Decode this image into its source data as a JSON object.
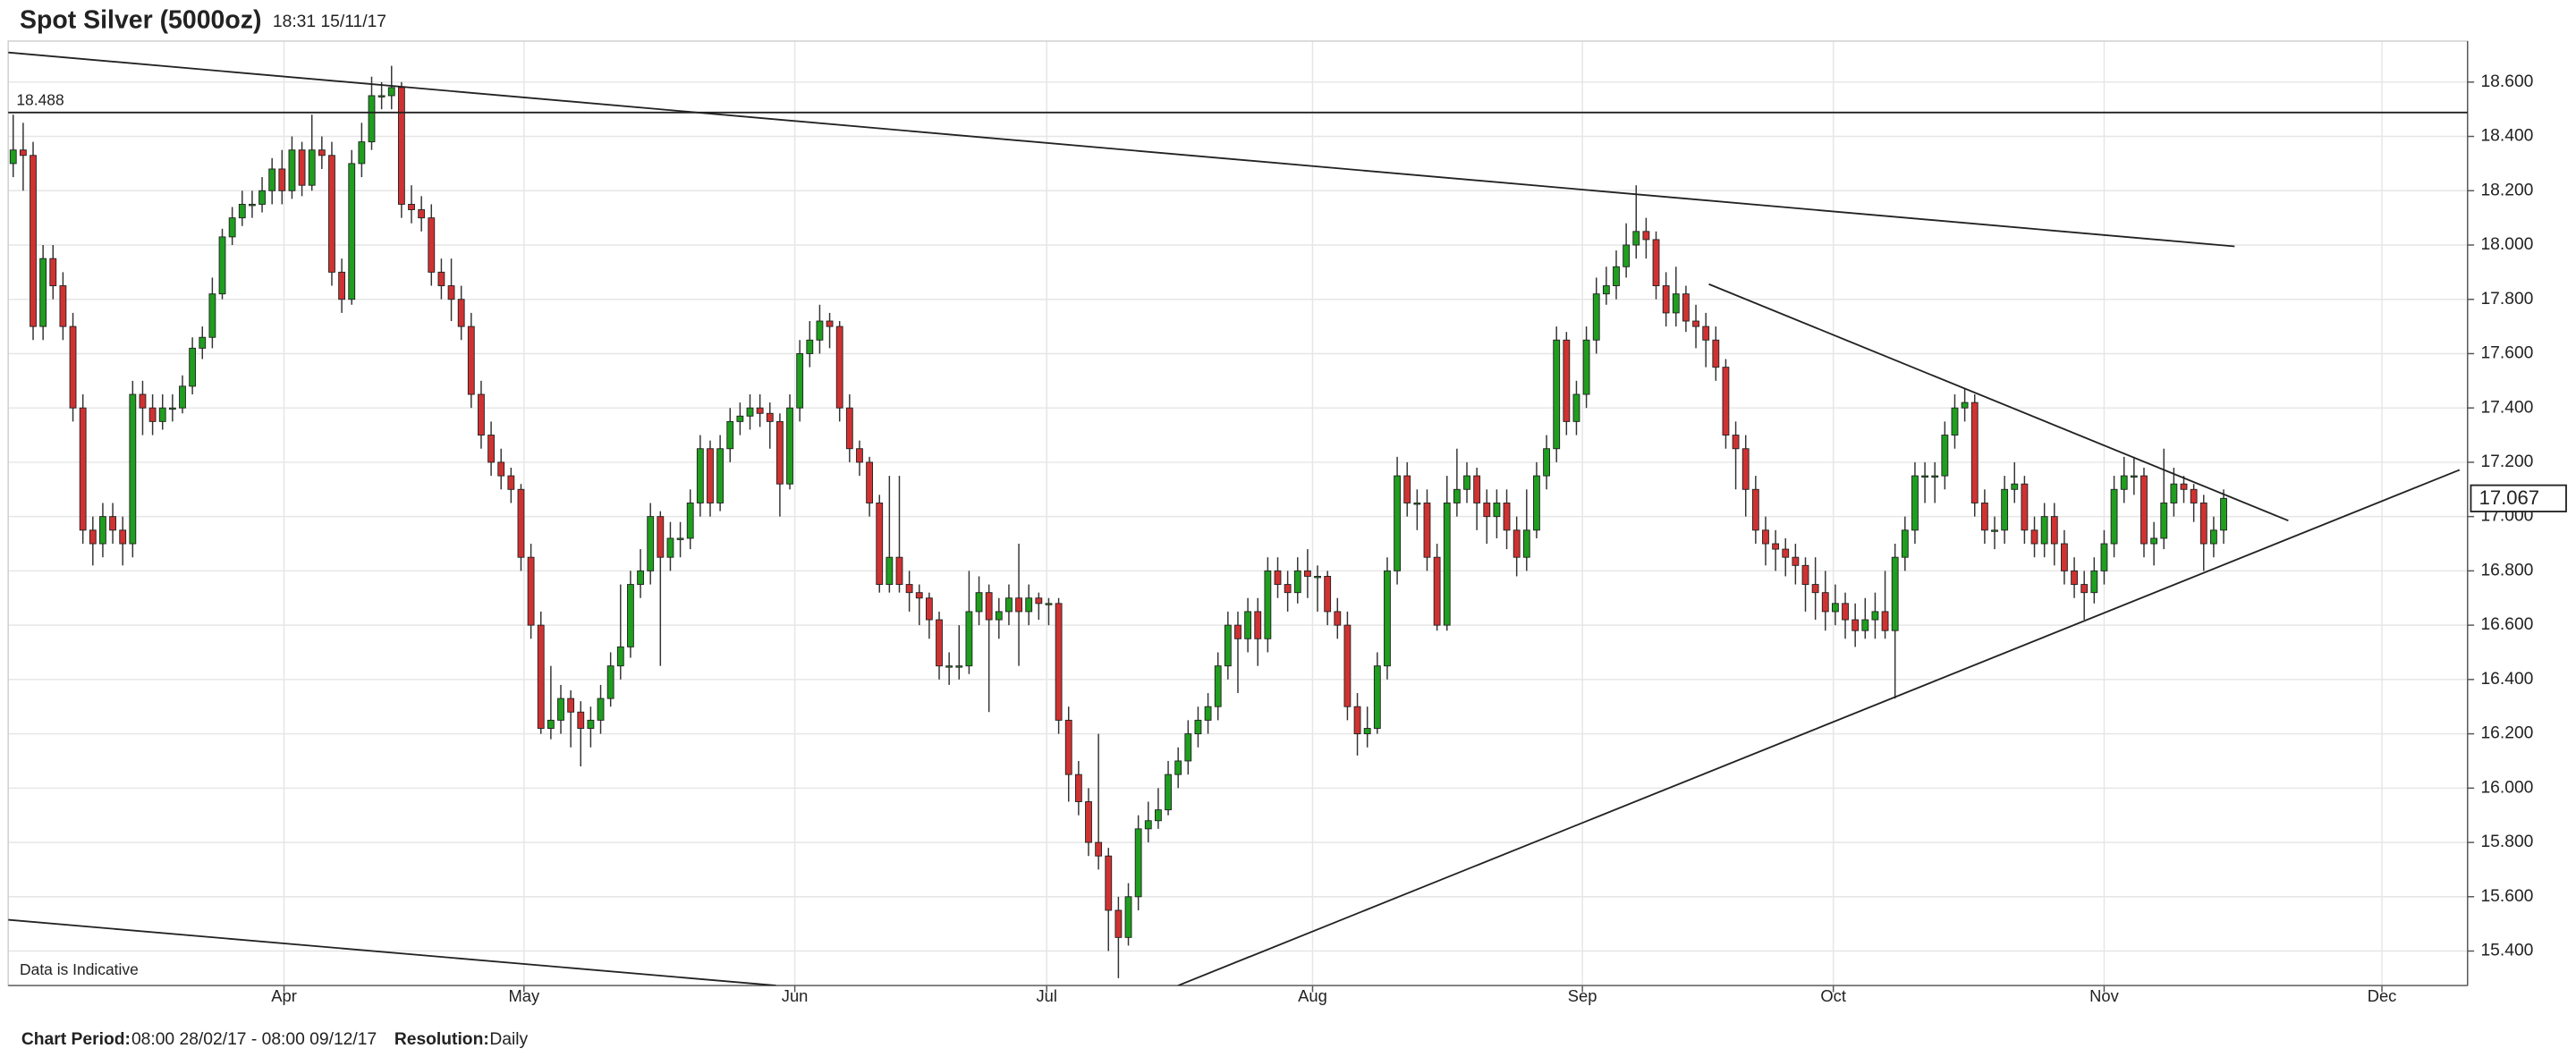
{
  "chart_data": {
    "type": "candlestick",
    "title": "Spot Silver (5000oz)",
    "timestamp": "18:31 15/11/17",
    "note": "Data is Indicative",
    "footer": {
      "period_label": "Chart Period:",
      "period": "08:00 28/02/17 - 08:00 09/12/17",
      "resolution_label": "Resolution:",
      "resolution": "Daily"
    },
    "up_color": "#1f9e1f",
    "down_color": "#d03232",
    "grid": true,
    "xlim": [
      -0.5,
      246.5
    ],
    "xticks": [
      {
        "value": 27.2,
        "label": "Apr"
      },
      {
        "value": 51.3,
        "label": "May"
      },
      {
        "value": 78.5,
        "label": "Jun"
      },
      {
        "value": 103.8,
        "label": "Jul"
      },
      {
        "value": 130.5,
        "label": "Aug"
      },
      {
        "value": 157.6,
        "label": "Sep"
      },
      {
        "value": 182.8,
        "label": "Oct"
      },
      {
        "value": 210,
        "label": "Nov"
      },
      {
        "value": 237.9,
        "label": "Dec"
      }
    ],
    "ylim": [
      15.273,
      18.751
    ],
    "yticks": [
      {
        "value": 15.4,
        "label": "15.400"
      },
      {
        "value": 15.6,
        "label": "15.600"
      },
      {
        "value": 15.8,
        "label": "15.800"
      },
      {
        "value": 16.0,
        "label": "16.000"
      },
      {
        "value": 16.2,
        "label": "16.200"
      },
      {
        "value": 16.4,
        "label": "16.400"
      },
      {
        "value": 16.6,
        "label": "16.600"
      },
      {
        "value": 16.8,
        "label": "16.800"
      },
      {
        "value": 17.0,
        "label": "17.000"
      },
      {
        "value": 17.2,
        "label": "17.200"
      },
      {
        "value": 17.4,
        "label": "17.400"
      },
      {
        "value": 17.6,
        "label": "17.600"
      },
      {
        "value": 17.8,
        "label": "17.800"
      },
      {
        "value": 18.0,
        "label": "18.000"
      },
      {
        "value": 18.2,
        "label": "18.200"
      },
      {
        "value": 18.4,
        "label": "18.400"
      },
      {
        "value": 18.6,
        "label": "18.600"
      }
    ],
    "hline": 18.488,
    "trendlines": [
      [
        [
          -0.5,
          18.709
        ],
        [
          223.1,
          17.995
        ]
      ],
      [
        [
          170.3,
          17.856
        ],
        [
          228.5,
          16.985
        ]
      ],
      [
        [
          117.0,
          15.273
        ],
        [
          245.7,
          17.172
        ]
      ],
      [
        [
          -0.5,
          15.515
        ],
        [
          76.6,
          15.273
        ]
      ]
    ],
    "open": [
      18.3,
      18.35,
      18.33,
      17.7,
      17.95,
      17.85,
      17.7,
      17.4,
      16.95,
      16.9,
      17.0,
      16.95,
      16.9,
      17.45,
      17.4,
      17.35,
      17.4,
      17.4,
      17.48,
      17.62,
      17.66,
      17.82,
      18.03,
      18.1,
      18.15,
      18.15,
      18.2,
      18.28,
      18.2,
      18.35,
      18.22,
      18.35,
      18.33,
      17.9,
      17.8,
      18.3,
      18.38,
      18.55,
      18.55,
      18.58,
      18.15,
      18.13,
      18.1,
      17.9,
      17.85,
      17.8,
      17.7,
      17.45,
      17.3,
      17.2,
      17.15,
      17.1,
      16.85,
      16.6,
      16.22,
      16.25,
      16.33,
      16.28,
      16.22,
      16.25,
      16.33,
      16.45,
      16.52,
      16.75,
      16.8,
      17.0,
      16.85,
      16.92,
      16.92,
      17.05,
      17.25,
      17.05,
      17.25,
      17.35,
      17.37,
      17.4,
      17.38,
      17.35,
      17.12,
      17.4,
      17.6,
      17.65,
      17.72,
      17.7,
      17.4,
      17.25,
      17.2,
      17.05,
      16.75,
      16.85,
      16.75,
      16.72,
      16.7,
      16.62,
      16.45,
      16.45,
      16.45,
      16.65,
      16.72,
      16.62,
      16.65,
      16.7,
      16.65,
      16.7,
      16.68,
      16.68,
      16.25,
      16.05,
      15.95,
      15.8,
      15.75,
      15.55,
      15.45,
      15.6,
      15.85,
      15.88,
      15.92,
      16.05,
      16.1,
      16.2,
      16.25,
      16.3,
      16.45,
      16.6,
      16.55,
      16.65,
      16.55,
      16.8,
      16.75,
      16.72,
      16.8,
      16.78,
      16.78,
      16.65,
      16.6,
      16.3,
      16.2,
      16.22,
      16.45,
      16.8,
      17.15,
      17.05,
      17.05,
      16.85,
      16.6,
      17.05,
      17.1,
      17.15,
      17.05,
      17.0,
      17.05,
      16.95,
      16.85,
      16.95,
      17.15,
      17.25,
      17.65,
      17.35,
      17.45,
      17.65,
      17.82,
      17.85,
      17.92,
      18.0,
      18.05,
      18.02,
      17.85,
      17.75,
      17.82,
      17.72,
      17.7,
      17.65,
      17.55,
      17.3,
      17.25,
      17.1,
      16.95,
      16.9,
      16.88,
      16.85,
      16.82,
      16.75,
      16.72,
      16.65,
      16.68,
      16.62,
      16.58,
      16.62,
      16.65,
      16.58,
      16.85,
      16.95,
      17.15,
      17.15,
      17.15,
      17.3,
      17.4,
      17.42,
      17.05,
      16.95,
      16.95,
      17.1,
      17.12,
      16.95,
      16.9,
      17.0,
      16.9,
      16.8,
      16.75,
      16.72,
      16.8,
      16.9,
      17.1,
      17.15,
      17.15,
      16.9,
      16.92,
      17.05,
      17.12,
      17.1,
      17.05,
      16.9,
      16.95
    ],
    "high": [
      18.48,
      18.45,
      18.38,
      18.0,
      18.0,
      17.9,
      17.75,
      17.45,
      17.0,
      17.05,
      17.05,
      17.0,
      17.5,
      17.5,
      17.45,
      17.45,
      17.45,
      17.52,
      17.66,
      17.7,
      17.88,
      18.06,
      18.14,
      18.2,
      18.2,
      18.25,
      18.32,
      18.35,
      18.4,
      18.38,
      18.48,
      18.4,
      18.38,
      17.95,
      18.35,
      18.45,
      18.62,
      18.6,
      18.66,
      18.6,
      18.22,
      18.18,
      18.15,
      17.95,
      17.95,
      17.85,
      17.75,
      17.5,
      17.35,
      17.25,
      17.18,
      17.12,
      16.9,
      16.65,
      16.45,
      16.38,
      16.36,
      16.32,
      16.3,
      16.38,
      16.5,
      16.75,
      16.8,
      16.88,
      17.05,
      17.02,
      16.98,
      16.98,
      17.1,
      17.3,
      17.28,
      17.3,
      17.4,
      17.42,
      17.45,
      17.45,
      17.42,
      17.38,
      17.45,
      17.65,
      17.72,
      17.78,
      17.75,
      17.72,
      17.45,
      17.28,
      17.22,
      17.08,
      17.15,
      17.15,
      16.8,
      16.75,
      16.72,
      16.65,
      16.5,
      16.6,
      16.8,
      16.78,
      16.75,
      16.7,
      16.75,
      16.9,
      16.75,
      16.72,
      16.7,
      16.7,
      16.3,
      16.1,
      16.0,
      16.2,
      15.78,
      15.6,
      15.65,
      15.9,
      15.95,
      16.0,
      16.1,
      16.15,
      16.25,
      16.3,
      16.35,
      16.5,
      16.65,
      16.65,
      16.7,
      16.7,
      16.85,
      16.85,
      16.8,
      16.85,
      16.88,
      16.82,
      16.8,
      16.7,
      16.65,
      16.35,
      16.3,
      16.5,
      16.85,
      17.22,
      17.2,
      17.1,
      17.1,
      16.9,
      17.15,
      17.25,
      17.2,
      17.18,
      17.1,
      17.1,
      17.1,
      17.0,
      17.1,
      17.2,
      17.3,
      17.7,
      17.68,
      17.5,
      17.7,
      17.88,
      17.92,
      17.98,
      18.08,
      18.22,
      18.1,
      18.05,
      17.9,
      17.92,
      17.85,
      17.78,
      17.75,
      17.7,
      17.58,
      17.35,
      17.3,
      17.15,
      17.0,
      16.95,
      16.92,
      16.9,
      16.85,
      16.85,
      16.8,
      16.75,
      16.72,
      16.68,
      16.7,
      16.72,
      16.8,
      16.9,
      17.0,
      17.2,
      17.2,
      17.2,
      17.35,
      17.45,
      17.47,
      17.45,
      17.1,
      17.0,
      17.15,
      17.2,
      17.15,
      17.0,
      17.05,
      17.05,
      16.95,
      16.85,
      16.8,
      16.85,
      16.95,
      17.15,
      17.22,
      17.22,
      17.18,
      16.98,
      17.25,
      17.18,
      17.15,
      17.12,
      17.08,
      17.0,
      17.1
    ],
    "low": [
      18.25,
      18.2,
      17.65,
      17.65,
      17.8,
      17.65,
      17.35,
      16.9,
      16.82,
      16.85,
      16.9,
      16.82,
      16.85,
      17.3,
      17.3,
      17.32,
      17.35,
      17.38,
      17.45,
      17.58,
      17.62,
      17.8,
      18.0,
      18.07,
      18.1,
      18.12,
      18.15,
      18.15,
      18.17,
      18.18,
      18.2,
      18.28,
      17.85,
      17.75,
      17.78,
      18.25,
      18.35,
      18.5,
      18.5,
      18.1,
      18.08,
      18.05,
      17.85,
      17.8,
      17.72,
      17.65,
      17.4,
      17.25,
      17.15,
      17.1,
      17.05,
      16.8,
      16.55,
      16.2,
      16.18,
      16.2,
      16.15,
      16.08,
      16.15,
      16.2,
      16.3,
      16.4,
      16.48,
      16.7,
      16.75,
      16.45,
      16.8,
      16.85,
      16.88,
      17.0,
      17.0,
      17.02,
      17.2,
      17.3,
      17.32,
      17.33,
      17.25,
      17.0,
      17.1,
      17.35,
      17.55,
      17.6,
      17.62,
      17.35,
      17.2,
      17.15,
      17.0,
      16.72,
      16.72,
      16.72,
      16.65,
      16.6,
      16.55,
      16.4,
      16.38,
      16.4,
      16.42,
      16.6,
      16.28,
      16.55,
      16.6,
      16.45,
      16.6,
      16.62,
      16.6,
      16.2,
      15.95,
      15.9,
      15.75,
      15.7,
      15.4,
      15.3,
      15.42,
      15.55,
      15.8,
      15.85,
      15.9,
      16.0,
      16.05,
      16.15,
      16.2,
      16.25,
      16.4,
      16.35,
      16.5,
      16.45,
      16.5,
      16.7,
      16.65,
      16.68,
      16.7,
      16.65,
      16.6,
      16.55,
      16.25,
      16.12,
      16.15,
      16.2,
      16.4,
      16.75,
      17.0,
      16.95,
      16.8,
      16.58,
      16.58,
      17.0,
      17.05,
      16.95,
      16.9,
      16.92,
      16.88,
      16.78,
      16.8,
      16.92,
      17.1,
      17.2,
      17.3,
      17.3,
      17.4,
      17.6,
      17.78,
      17.8,
      17.88,
      17.95,
      17.95,
      17.8,
      17.7,
      17.7,
      17.68,
      17.62,
      17.55,
      17.5,
      17.25,
      17.1,
      17.0,
      16.9,
      16.82,
      16.8,
      16.78,
      16.75,
      16.65,
      16.62,
      16.58,
      16.6,
      16.55,
      16.52,
      16.55,
      16.55,
      16.55,
      16.33,
      16.8,
      16.9,
      17.05,
      17.05,
      17.1,
      17.25,
      17.35,
      17.0,
      16.9,
      16.88,
      16.9,
      17.05,
      16.9,
      16.85,
      16.85,
      16.82,
      16.75,
      16.7,
      16.62,
      16.68,
      16.75,
      16.85,
      17.05,
      17.08,
      16.85,
      16.82,
      16.88,
      17.0,
      17.05,
      16.98,
      16.8,
      16.85,
      16.9
    ],
    "close": [
      18.35,
      18.33,
      17.7,
      17.95,
      17.85,
      17.7,
      17.4,
      16.95,
      16.9,
      17.0,
      16.95,
      16.9,
      17.45,
      17.4,
      17.35,
      17.4,
      17.4,
      17.48,
      17.62,
      17.66,
      17.82,
      18.03,
      18.1,
      18.15,
      18.15,
      18.2,
      18.28,
      18.2,
      18.35,
      18.22,
      18.35,
      18.33,
      17.9,
      17.8,
      18.3,
      18.38,
      18.55,
      18.55,
      18.58,
      18.15,
      18.13,
      18.1,
      17.9,
      17.85,
      17.8,
      17.7,
      17.45,
      17.3,
      17.2,
      17.15,
      17.1,
      16.85,
      16.6,
      16.22,
      16.25,
      16.33,
      16.28,
      16.22,
      16.25,
      16.33,
      16.45,
      16.52,
      16.75,
      16.8,
      17.0,
      16.85,
      16.92,
      16.92,
      17.05,
      17.25,
      17.05,
      17.25,
      17.35,
      17.37,
      17.4,
      17.38,
      17.35,
      17.12,
      17.4,
      17.6,
      17.65,
      17.72,
      17.7,
      17.4,
      17.25,
      17.2,
      17.05,
      16.75,
      16.85,
      16.75,
      16.72,
      16.7,
      16.62,
      16.45,
      16.45,
      16.45,
      16.65,
      16.72,
      16.62,
      16.65,
      16.7,
      16.65,
      16.7,
      16.68,
      16.68,
      16.25,
      16.05,
      15.95,
      15.8,
      15.75,
      15.55,
      15.45,
      15.6,
      15.85,
      15.88,
      15.92,
      16.05,
      16.1,
      16.2,
      16.25,
      16.3,
      16.45,
      16.6,
      16.55,
      16.65,
      16.55,
      16.8,
      16.75,
      16.72,
      16.8,
      16.78,
      16.78,
      16.65,
      16.6,
      16.3,
      16.2,
      16.22,
      16.45,
      16.8,
      17.15,
      17.05,
      17.05,
      16.85,
      16.6,
      17.05,
      17.1,
      17.15,
      17.05,
      17.0,
      17.05,
      16.95,
      16.85,
      16.95,
      17.15,
      17.25,
      17.65,
      17.35,
      17.45,
      17.65,
      17.82,
      17.85,
      17.92,
      18.0,
      18.05,
      18.02,
      17.85,
      17.75,
      17.82,
      17.72,
      17.7,
      17.65,
      17.55,
      17.3,
      17.25,
      17.1,
      16.95,
      16.9,
      16.88,
      16.85,
      16.82,
      16.75,
      16.72,
      16.65,
      16.68,
      16.62,
      16.58,
      16.62,
      16.65,
      16.58,
      16.85,
      16.95,
      17.15,
      17.15,
      17.15,
      17.3,
      17.4,
      17.42,
      17.05,
      16.95,
      16.95,
      17.1,
      17.12,
      16.95,
      16.9,
      17.0,
      16.9,
      16.8,
      16.75,
      16.72,
      16.8,
      16.9,
      17.1,
      17.15,
      17.15,
      16.9,
      16.92,
      17.05,
      17.12,
      17.1,
      17.05,
      16.9,
      16.95,
      17.067
    ]
  }
}
